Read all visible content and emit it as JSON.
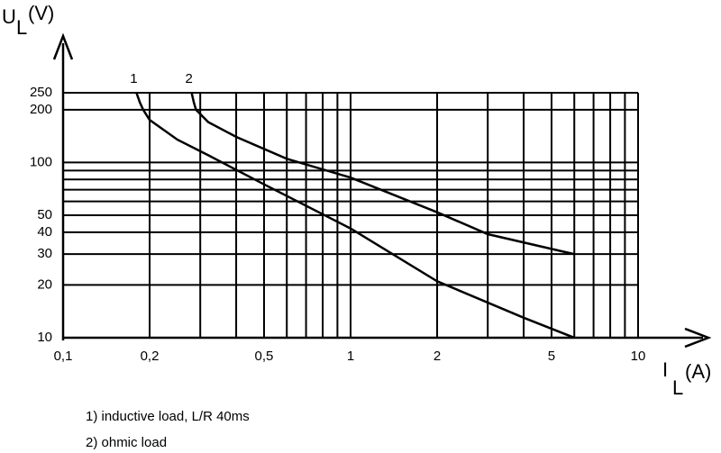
{
  "chart_data": {
    "type": "line",
    "y_label": {
      "symbol": "U",
      "subscript": "L",
      "unit": "(V)"
    },
    "x_label": {
      "symbol": "I",
      "subscript": "L",
      "unit": "(A)"
    },
    "log_x": true,
    "log_y": true,
    "grid": true,
    "xlim": [
      0.1,
      10
    ],
    "ylim": [
      10,
      250
    ],
    "xticks": [
      {
        "value": 0.1,
        "label": "0,1"
      },
      {
        "value": 0.2,
        "label": "0,2"
      },
      {
        "value": 0.5,
        "label": "0,5"
      },
      1,
      2,
      5,
      10
    ],
    "minor_xticks": [
      0.3,
      0.4,
      0.6,
      0.7,
      0.8,
      0.9,
      3,
      4,
      6,
      7,
      8,
      9
    ],
    "yticks": [
      10,
      20,
      30,
      40,
      50,
      100,
      200,
      250
    ],
    "minor_yticks": [
      60,
      70,
      80,
      90
    ],
    "series": [
      {
        "name": "1",
        "color": "#000000",
        "x": [
          0.18,
          0.185,
          0.19,
          0.2,
          0.25,
          0.32,
          0.5,
          1,
          2,
          4,
          6
        ],
        "values": [
          250,
          220,
          200,
          175,
          135,
          110,
          75,
          42,
          21,
          13,
          10
        ]
      },
      {
        "name": "2",
        "color": "#000000",
        "x": [
          0.28,
          0.285,
          0.29,
          0.32,
          0.4,
          0.6,
          1,
          2,
          3,
          6
        ],
        "values": [
          250,
          220,
          200,
          170,
          140,
          105,
          82,
          52,
          39,
          30
        ]
      }
    ],
    "notes": [
      "1) inductive load, L/R 40ms",
      "2) ohmic load"
    ]
  }
}
